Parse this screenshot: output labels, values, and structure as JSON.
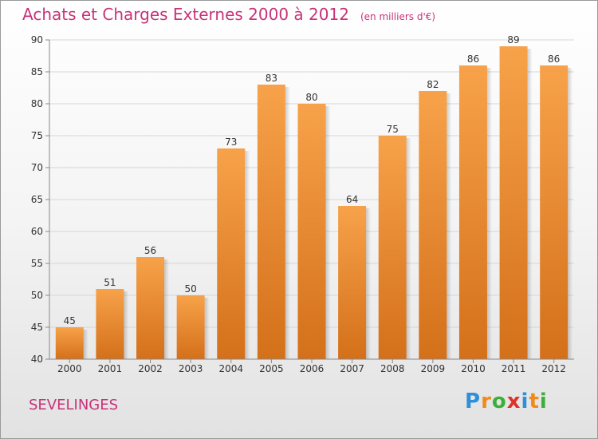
{
  "title": "Achats et Charges Externes 2000 à 2012",
  "subtitle": "(en milliers d'€)",
  "location": "SEVELINGES",
  "logo": {
    "text": "Proxiti",
    "colors": [
      "#2f8fd8",
      "#f08a1c",
      "#3ab03a",
      "#e0302c",
      "#2f8fd8",
      "#f08a1c",
      "#3ab03a"
    ]
  },
  "colors": {
    "bar_top": "#f7a24a",
    "bar_bottom": "#d4701a",
    "title": "#c8327a"
  },
  "chart_data": {
    "type": "bar",
    "categories": [
      "2000",
      "2001",
      "2002",
      "2003",
      "2004",
      "2005",
      "2006",
      "2007",
      "2008",
      "2009",
      "2010",
      "2011",
      "2012"
    ],
    "values": [
      45,
      51,
      56,
      50,
      73,
      83,
      80,
      64,
      75,
      82,
      86,
      89,
      86
    ],
    "ylim": [
      40,
      90
    ],
    "yticks": [
      40,
      45,
      50,
      55,
      60,
      65,
      70,
      75,
      80,
      85,
      90
    ],
    "grid": true
  }
}
